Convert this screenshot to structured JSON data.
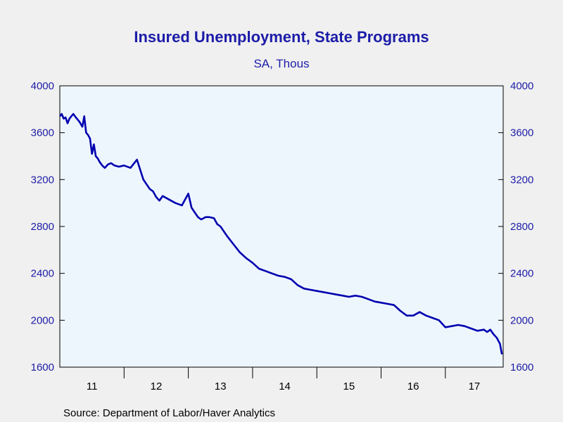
{
  "chart_data": {
    "type": "line",
    "title": "Insured Unemployment, State Programs",
    "subtitle": "SA, Thous",
    "source": "Source:  Department of Labor/Haver Analytics",
    "ylim": [
      1600,
      4000
    ],
    "y_ticks": [
      1600,
      2000,
      2400,
      2800,
      3200,
      3600,
      4000
    ],
    "y_tick_labels": [
      "1600",
      "2000",
      "2400",
      "2800",
      "3200",
      "3600",
      "4000"
    ],
    "xlim": [
      2011.0,
      2017.9
    ],
    "x_ticks": [
      2011,
      2012,
      2013,
      2014,
      2015,
      2016,
      2017
    ],
    "x_tick_labels": [
      "11",
      "12",
      "13",
      "14",
      "15",
      "16",
      "17"
    ],
    "grid": false,
    "legend": "none",
    "line_color": "#0000b0",
    "plot_bg": "#eef6fd",
    "series": [
      {
        "x": [
          2011.0,
          2011.03,
          2011.06,
          2011.09,
          2011.12,
          2011.15,
          2011.18,
          2011.21,
          2011.25,
          2011.28,
          2011.31,
          2011.35,
          2011.38,
          2011.41,
          2011.44,
          2011.47,
          2011.5,
          2011.53,
          2011.56,
          2011.59,
          2011.62,
          2011.66,
          2011.7,
          2011.75,
          2011.8,
          2011.85,
          2011.92,
          2012.0,
          2012.1,
          2012.2,
          2012.3,
          2012.4,
          2012.45,
          2012.5,
          2012.55,
          2012.6,
          2012.7,
          2012.8,
          2012.9,
          2013.0,
          2013.05,
          2013.1,
          2013.15,
          2013.2,
          2013.27,
          2013.33,
          2013.4,
          2013.45,
          2013.5,
          2013.6,
          2013.7,
          2013.8,
          2013.9,
          2014.0,
          2014.1,
          2014.2,
          2014.3,
          2014.4,
          2014.5,
          2014.6,
          2014.7,
          2014.8,
          2014.9,
          2015.0,
          2015.1,
          2015.2,
          2015.3,
          2015.4,
          2015.5,
          2015.6,
          2015.7,
          2015.8,
          2015.9,
          2016.0,
          2016.1,
          2016.2,
          2016.3,
          2016.4,
          2016.5,
          2016.6,
          2016.7,
          2016.8,
          2016.9,
          2017.0,
          2017.1,
          2017.2,
          2017.3,
          2017.4,
          2017.5,
          2017.6,
          2017.65,
          2017.7,
          2017.75,
          2017.8,
          2017.85,
          2017.88
        ],
        "values": [
          3740,
          3760,
          3720,
          3730,
          3680,
          3720,
          3740,
          3760,
          3730,
          3710,
          3690,
          3650,
          3740,
          3600,
          3580,
          3550,
          3420,
          3500,
          3400,
          3380,
          3350,
          3320,
          3300,
          3330,
          3340,
          3320,
          3310,
          3320,
          3300,
          3370,
          3200,
          3120,
          3100,
          3050,
          3020,
          3060,
          3030,
          3000,
          2980,
          3080,
          2960,
          2920,
          2880,
          2860,
          2880,
          2880,
          2870,
          2820,
          2800,
          2720,
          2650,
          2580,
          2530,
          2490,
          2440,
          2420,
          2400,
          2380,
          2370,
          2350,
          2300,
          2270,
          2260,
          2250,
          2240,
          2230,
          2220,
          2210,
          2200,
          2210,
          2200,
          2180,
          2160,
          2150,
          2140,
          2130,
          2080,
          2040,
          2040,
          2070,
          2040,
          2020,
          2000,
          1940,
          1950,
          1960,
          1950,
          1930,
          1910,
          1920,
          1900,
          1920,
          1880,
          1850,
          1800,
          1710
        ]
      }
    ]
  }
}
